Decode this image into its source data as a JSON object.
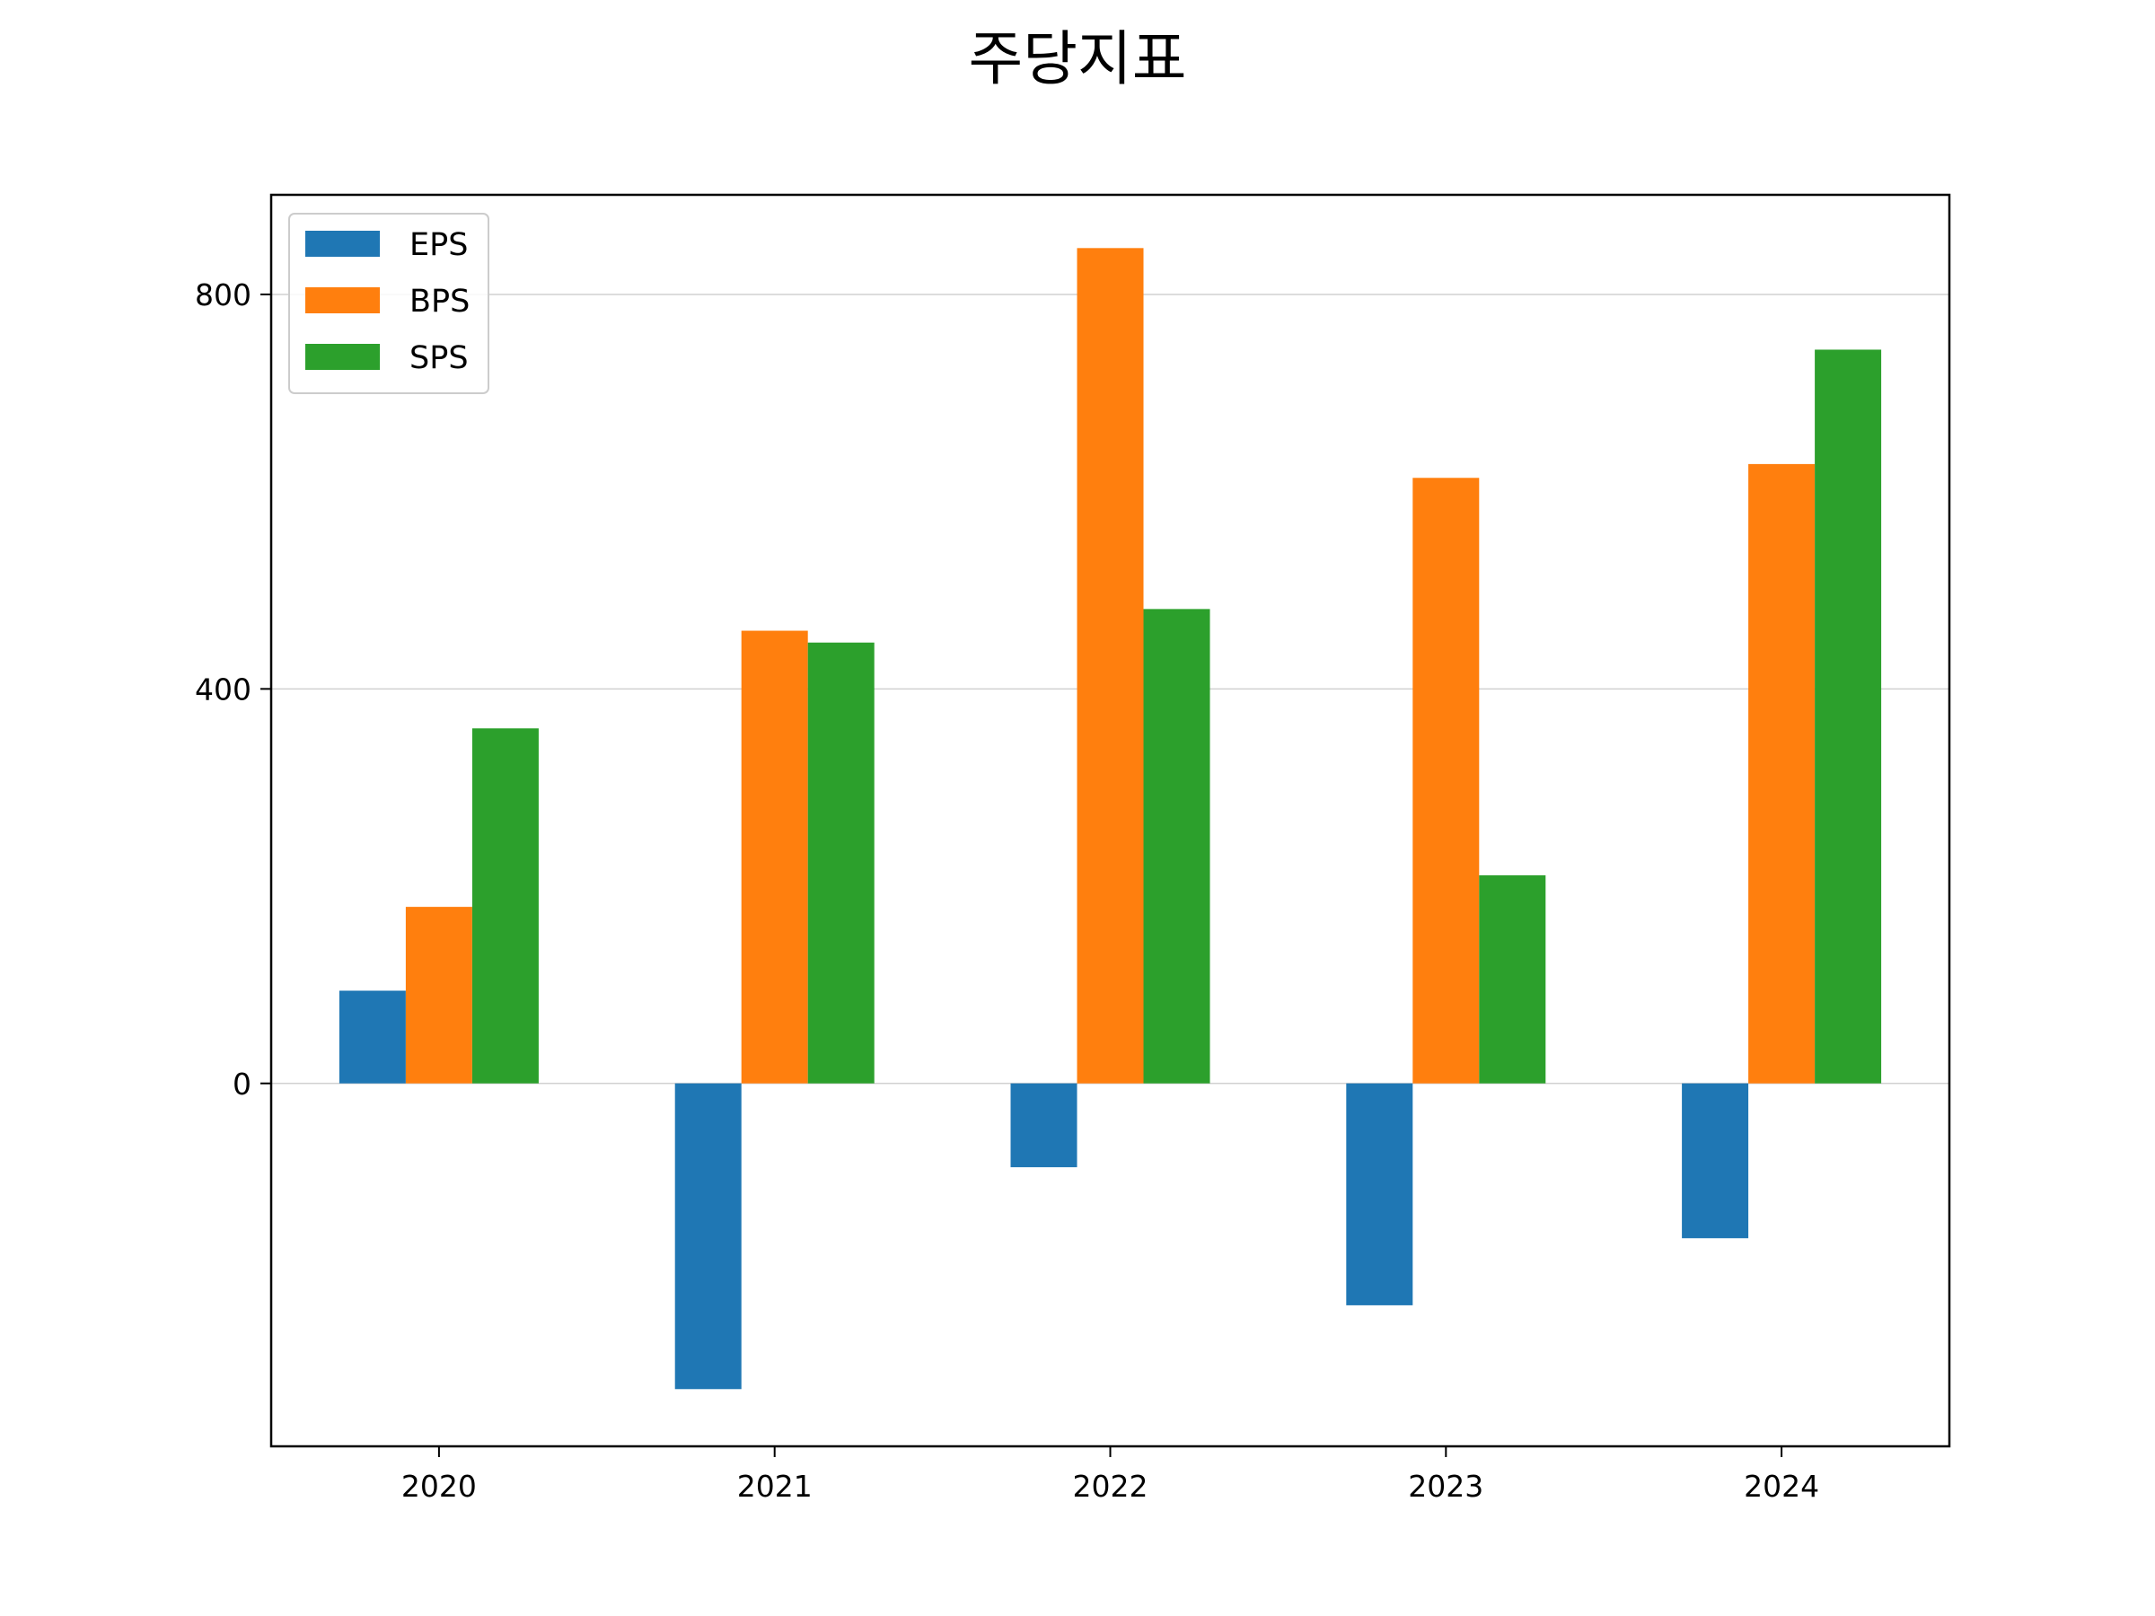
{
  "chart_data": {
    "type": "bar",
    "title": "주당지표",
    "xlabel": "",
    "ylabel": "",
    "categories": [
      "2020",
      "2021",
      "2022",
      "2023",
      "2024"
    ],
    "series": [
      {
        "name": "EPS",
        "color": "#1f77b4",
        "values": [
          94,
          -310,
          -85,
          -225,
          -157
        ]
      },
      {
        "name": "BPS",
        "color": "#ff7f0e",
        "values": [
          179,
          459,
          847,
          614,
          628
        ]
      },
      {
        "name": "SPS",
        "color": "#2ca02c",
        "values": [
          360,
          447,
          481,
          211,
          744
        ]
      }
    ],
    "yticks": [
      "0",
      "400",
      "800"
    ],
    "ylim": [
      -368,
      901
    ],
    "grid": "horizontal",
    "legend": "top-left"
  }
}
